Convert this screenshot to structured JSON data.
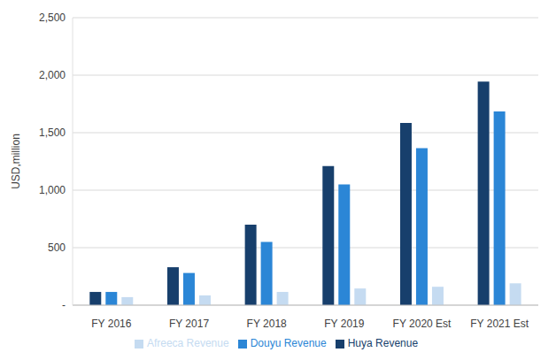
{
  "chart_data": {
    "type": "bar",
    "y_label": "USD,million",
    "categories": [
      "FY 2016",
      "FY 2017",
      "FY 2018",
      "FY 2019",
      "FY 2020 Est",
      "FY 2021 Est"
    ],
    "series": [
      {
        "name": "Huya Revenue",
        "color": "#173f6c",
        "values": [
          115,
          330,
          700,
          1210,
          1585,
          1945
        ]
      },
      {
        "name": "Douyu Revenue",
        "color": "#2b86d6",
        "values": [
          115,
          280,
          550,
          1050,
          1365,
          1685
        ]
      },
      {
        "name": "Afreeca Revenue",
        "color": "#c5dbf1",
        "values": [
          70,
          85,
          115,
          145,
          160,
          190
        ]
      }
    ],
    "ylim": [
      0,
      2500
    ],
    "yticks": [
      {
        "value": 0,
        "label": "-"
      },
      500,
      {
        "value": 1000,
        "label": "1,000"
      },
      {
        "value": 1500,
        "label": "1,500"
      },
      {
        "value": 2000,
        "label": "2,000"
      },
      {
        "value": 2500,
        "label": "2,500"
      }
    ],
    "grid": true,
    "legend": "bottom"
  }
}
